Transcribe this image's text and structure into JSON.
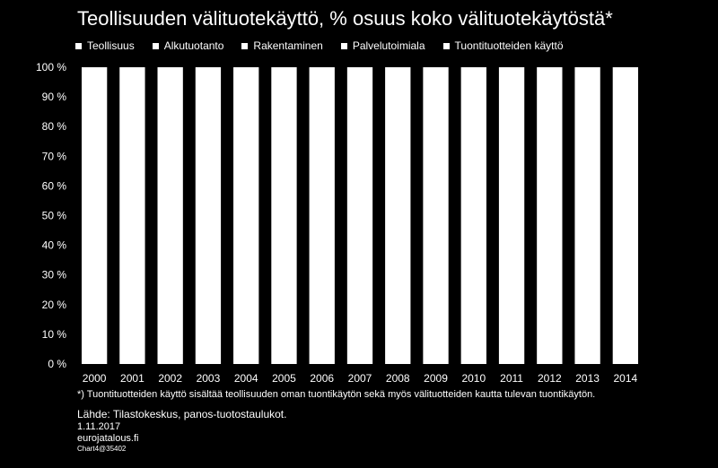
{
  "chart_data": {
    "type": "bar",
    "stacked": true,
    "title": "Teollisuuden välituotekäyttö, % osuus koko välituotekäytöstä*",
    "categories": [
      "2000",
      "2001",
      "2002",
      "2003",
      "2004",
      "2005",
      "2006",
      "2007",
      "2008",
      "2009",
      "2010",
      "2011",
      "2012",
      "2013",
      "2014"
    ],
    "series": [
      {
        "name": "Teollisuus",
        "values": [
          100,
          100,
          100,
          100,
          100,
          100,
          100,
          100,
          100,
          100,
          100,
          100,
          100,
          100,
          100
        ]
      },
      {
        "name": "Alkutuotanto",
        "values": [
          0,
          0,
          0,
          0,
          0,
          0,
          0,
          0,
          0,
          0,
          0,
          0,
          0,
          0,
          0
        ]
      },
      {
        "name": "Rakentaminen",
        "values": [
          0,
          0,
          0,
          0,
          0,
          0,
          0,
          0,
          0,
          0,
          0,
          0,
          0,
          0,
          0
        ]
      },
      {
        "name": "Palvelutoimiala",
        "values": [
          0,
          0,
          0,
          0,
          0,
          0,
          0,
          0,
          0,
          0,
          0,
          0,
          0,
          0,
          0
        ]
      },
      {
        "name": "Tuontituotteiden käyttö",
        "values": [
          0,
          0,
          0,
          0,
          0,
          0,
          0,
          0,
          0,
          0,
          0,
          0,
          0,
          0,
          0
        ]
      }
    ],
    "ylim": [
      0,
      100
    ],
    "yticks": [
      "0 %",
      "10 %",
      "20 %",
      "30 %",
      "40 %",
      "50 %",
      "60 %",
      "70 %",
      "80 %",
      "90 %",
      "100 %"
    ],
    "xlabel": "",
    "ylabel": "",
    "legend_position": "top",
    "grid": false,
    "colors": {
      "background": "#000000",
      "bars": "#ffffff",
      "text": "#ffffff"
    }
  },
  "notes": {
    "footnote": "*) Tuontituotteiden käyttö sisältää teollisuuden oman tuontikäytön sekä myös välituotteiden kautta tulevan tuontikäytön.",
    "source": "Lähde: Tilastokeskus, panos-tuotostaulukot.",
    "date": "1.11.2017",
    "site": "eurojatalous.fi",
    "chart_id": "Chart4@35402"
  }
}
